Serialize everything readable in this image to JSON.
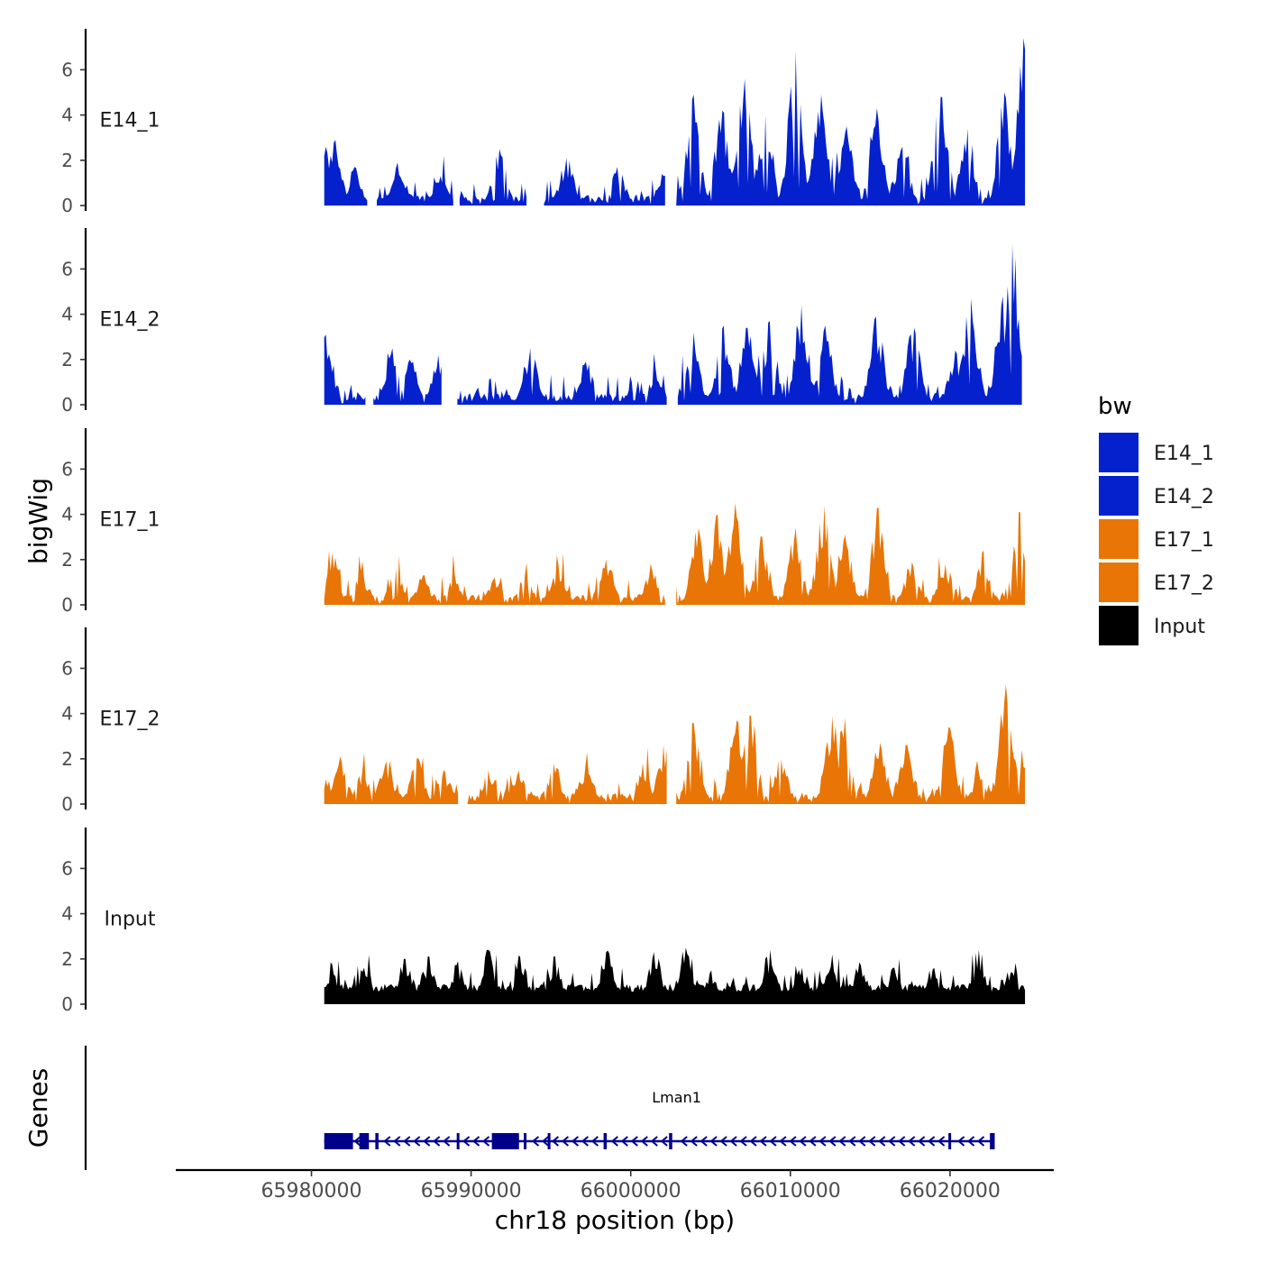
{
  "chart_data": {
    "type": "area",
    "chromosome": "chr18",
    "xlabel": "chr18 position (bp)",
    "ylabel": "bigWig",
    "genes_label": "Genes",
    "xlim": [
      65971500,
      66026500
    ],
    "x_ticks": [
      65980000,
      65990000,
      66000000,
      66010000,
      66020000
    ],
    "x_tick_labels": [
      "65980000",
      "65990000",
      "66000000",
      "66010000",
      "66020000"
    ],
    "ylim": [
      0,
      7.8
    ],
    "y_ticks": [
      0,
      2,
      4,
      6
    ],
    "y_tick_labels": [
      "0",
      "2",
      "4",
      "6"
    ],
    "legend": {
      "title": "bw",
      "entries": [
        {
          "label": "E14_1",
          "color": "#0421CD"
        },
        {
          "label": "E14_2",
          "color": "#0421CD"
        },
        {
          "label": "E17_1",
          "color": "#E87505"
        },
        {
          "label": "E17_2",
          "color": "#E87505"
        },
        {
          "label": "Input",
          "color": "#000000"
        }
      ]
    },
    "tracks": [
      {
        "name": "E14_1",
        "color": "#0421CD",
        "x_start": 65980800,
        "x_end": 66024700,
        "gaps": [
          [
            65983500,
            65984000
          ],
          [
            65988900,
            65989200
          ],
          [
            65993500,
            65994500
          ],
          [
            66002200,
            66002800
          ]
        ],
        "peaks": [
          [
            65980900,
            2.6
          ],
          [
            65981500,
            2.9
          ],
          [
            65982700,
            1.7
          ],
          [
            65985400,
            1.9
          ],
          [
            65988100,
            1.3
          ],
          [
            65991800,
            2.5
          ],
          [
            65996000,
            2.1
          ],
          [
            65999200,
            1.7
          ],
          [
            66002000,
            1.4
          ],
          [
            66003900,
            4.9
          ],
          [
            66005700,
            4.2
          ],
          [
            66007100,
            5.6
          ],
          [
            66008400,
            4.0
          ],
          [
            66010300,
            6.8
          ],
          [
            66011900,
            4.9
          ],
          [
            66013500,
            3.5
          ],
          [
            66015400,
            4.3
          ],
          [
            66017000,
            2.6
          ],
          [
            66019400,
            4.8
          ],
          [
            66021100,
            3.4
          ],
          [
            66023400,
            5.0
          ],
          [
            66024650,
            7.4
          ]
        ]
      },
      {
        "name": "E14_2",
        "color": "#0421CD",
        "x_start": 65980800,
        "x_end": 66024500,
        "gaps": [
          [
            65983400,
            65983800
          ],
          [
            65988200,
            65989100
          ],
          [
            66002300,
            66002900
          ]
        ],
        "peaks": [
          [
            65980900,
            3.1
          ],
          [
            65985100,
            2.5
          ],
          [
            65986200,
            2.0
          ],
          [
            65988000,
            2.2
          ],
          [
            65993700,
            2.5
          ],
          [
            65997200,
            1.9
          ],
          [
            66001600,
            1.6
          ],
          [
            66003900,
            3.2
          ],
          [
            66005800,
            3.5
          ],
          [
            66007300,
            3.4
          ],
          [
            66008700,
            3.7
          ],
          [
            66010700,
            4.4
          ],
          [
            66012200,
            3.5
          ],
          [
            66015400,
            3.9
          ],
          [
            66017700,
            3.4
          ],
          [
            66020300,
            2.4
          ],
          [
            66021300,
            4.7
          ],
          [
            66023300,
            4.8
          ],
          [
            66023900,
            7.1
          ]
        ]
      },
      {
        "name": "E17_1",
        "color": "#E87505",
        "x_start": 65980800,
        "x_end": 66024700,
        "gaps": [
          [
            66002200,
            66002800
          ]
        ],
        "peaks": [
          [
            65981300,
            2.3
          ],
          [
            65983100,
            1.5
          ],
          [
            65985300,
            1.6
          ],
          [
            65987000,
            1.3
          ],
          [
            65989000,
            1.3
          ],
          [
            65991500,
            1.2
          ],
          [
            65993400,
            1.3
          ],
          [
            65995500,
            1.8
          ],
          [
            65998500,
            2.0
          ],
          [
            66001400,
            1.5
          ],
          [
            66004200,
            3.4
          ],
          [
            66005400,
            4.0
          ],
          [
            66006500,
            4.5
          ],
          [
            66008200,
            3.0
          ],
          [
            66010300,
            3.4
          ],
          [
            66012100,
            4.4
          ],
          [
            66013400,
            3.1
          ],
          [
            66015500,
            4.3
          ],
          [
            66017600,
            1.9
          ],
          [
            66019700,
            1.8
          ],
          [
            66022100,
            2.4
          ],
          [
            66024300,
            4.1
          ]
        ]
      },
      {
        "name": "E17_2",
        "color": "#E87505",
        "x_start": 65980800,
        "x_end": 66024700,
        "gaps": [
          [
            65989200,
            65989700
          ],
          [
            66002300,
            66002800
          ]
        ],
        "peaks": [
          [
            65980900,
            1.1
          ],
          [
            65981800,
            2.1
          ],
          [
            65983200,
            1.5
          ],
          [
            65984700,
            1.9
          ],
          [
            65986600,
            2.0
          ],
          [
            65988400,
            1.4
          ],
          [
            65991100,
            1.5
          ],
          [
            65993000,
            1.5
          ],
          [
            65995200,
            1.8
          ],
          [
            65997200,
            1.7
          ],
          [
            66000800,
            1.8
          ],
          [
            66002100,
            2.6
          ],
          [
            66003900,
            3.6
          ],
          [
            66006600,
            3.7
          ],
          [
            66007500,
            3.9
          ],
          [
            66009400,
            2.0
          ],
          [
            66012600,
            3.9
          ],
          [
            66013400,
            3.8
          ],
          [
            66015600,
            2.7
          ],
          [
            66017200,
            2.6
          ],
          [
            66019900,
            3.4
          ],
          [
            66021800,
            1.4
          ],
          [
            66023500,
            5.3
          ],
          [
            66024500,
            2.4
          ]
        ]
      },
      {
        "name": "Input",
        "color": "#000000",
        "x_start": 65980800,
        "x_end": 66024700,
        "gaps": [],
        "peaks": [
          [
            65981400,
            1.3
          ],
          [
            65983300,
            1.6
          ],
          [
            65985800,
            2.0
          ],
          [
            65987300,
            2.1
          ],
          [
            65989200,
            1.9
          ],
          [
            65991100,
            2.4
          ],
          [
            65993100,
            2.1
          ],
          [
            65995200,
            2.1
          ],
          [
            65998500,
            2.3
          ],
          [
            66001500,
            2.3
          ],
          [
            66003400,
            2.5
          ],
          [
            66005000,
            1.5
          ],
          [
            66008700,
            2.4
          ],
          [
            66010700,
            1.6
          ],
          [
            66012600,
            2.2
          ],
          [
            66014400,
            1.7
          ],
          [
            66016500,
            1.6
          ],
          [
            66019000,
            1.6
          ],
          [
            66021800,
            2.4
          ],
          [
            66023800,
            1.4
          ]
        ]
      }
    ],
    "gene": {
      "name": "Lman1",
      "strand": "-",
      "start": 65980800,
      "end": 66022800,
      "color": "#00008B",
      "exons": [
        [
          65980800,
          65982600
        ],
        [
          65983000,
          65983600
        ],
        [
          65984000,
          65984200
        ],
        [
          65989100,
          65989200
        ],
        [
          65991300,
          65993000
        ],
        [
          65993300,
          65993400
        ],
        [
          65994800,
          65994900
        ],
        [
          65998300,
          65998500
        ],
        [
          66002400,
          66002600
        ],
        [
          66019900,
          66020000
        ],
        [
          66022500,
          66022800
        ]
      ]
    }
  }
}
